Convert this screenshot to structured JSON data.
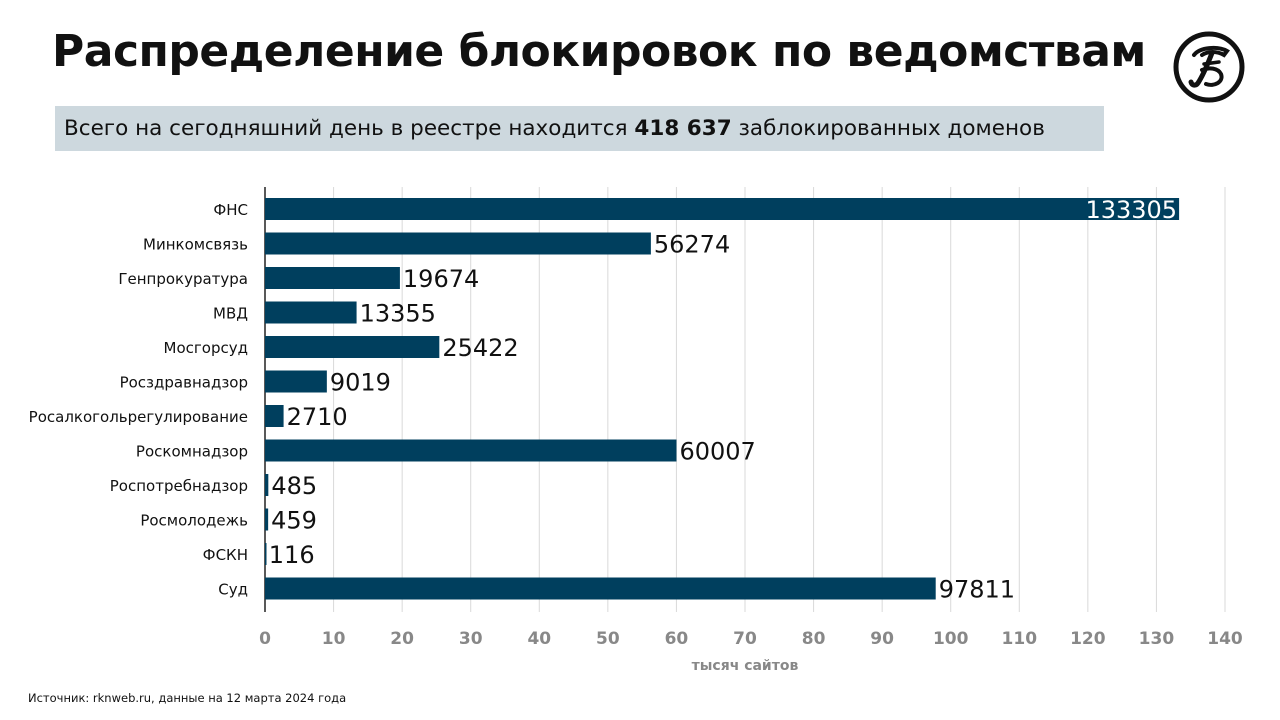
{
  "header": {
    "title": "Распределение блокировок по ведомствам",
    "subtitle_prefix": "Всего на сегодняшний день в реестре находится",
    "subtitle_total": "418 637",
    "subtitle_suffix": "заблокированных доменов"
  },
  "logo": {
    "name": "logo-emblem"
  },
  "footer": {
    "source": "Источник: rknweb.ru, данные на 12 марта 2024 года"
  },
  "colors": {
    "bar": "#003f5e",
    "panel": "#cdd8de",
    "grid": "#d9d9d9",
    "axis": "#222222",
    "tick": "#888888"
  },
  "chart_data": {
    "type": "bar",
    "orientation": "horizontal",
    "categories": [
      "ФНС",
      "Минкомсвязь",
      "Генпрокуратура",
      "МВД",
      "Мосгорсуд",
      "Росздравнадзор",
      "Росалкогольрегулирование",
      "Роскомнадзор",
      "Роспотребнадзор",
      "Росмолодежь",
      "ФСКН",
      "Суд"
    ],
    "values": [
      133305,
      56274,
      19674,
      13355,
      25422,
      9019,
      2710,
      60007,
      485,
      459,
      116,
      97811
    ],
    "value_labels": [
      "133305",
      "56274",
      "19674",
      "13355",
      "25422",
      "9019",
      "2710",
      "60007",
      "485",
      "459",
      "116",
      "97811"
    ],
    "xlabel": "тысяч сайтов",
    "xlim": [
      0,
      140000
    ],
    "xticks": [
      0,
      10000,
      20000,
      30000,
      40000,
      50000,
      60000,
      70000,
      80000,
      90000,
      100000,
      110000,
      120000,
      130000,
      140000
    ],
    "xtick_labels": [
      "0",
      "10",
      "20",
      "30",
      "40",
      "50",
      "60",
      "70",
      "80",
      "90",
      "100",
      "110",
      "120",
      "130",
      "140"
    ],
    "grid": true
  }
}
